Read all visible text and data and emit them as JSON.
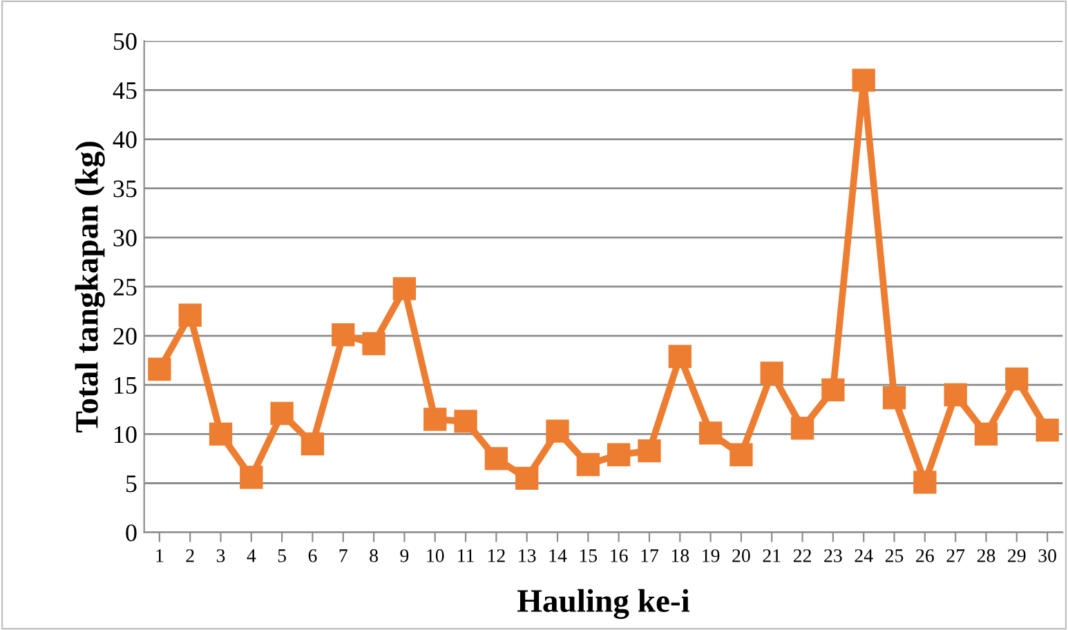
{
  "chart_data": {
    "type": "line",
    "xlabel": "Hauling ke-i",
    "ylabel": "Total tangkapan (kg)",
    "categories": [
      "1",
      "2",
      "3",
      "4",
      "5",
      "6",
      "7",
      "8",
      "9",
      "10",
      "11",
      "12",
      "13",
      "14",
      "15",
      "16",
      "17",
      "18",
      "19",
      "20",
      "21",
      "22",
      "23",
      "24",
      "25",
      "26",
      "27",
      "28",
      "29",
      "30"
    ],
    "series": [
      {
        "color": "#ed7d31",
        "values": [
          16.6,
          22.1,
          10.0,
          5.6,
          12.1,
          9.0,
          20.1,
          19.2,
          24.8,
          11.5,
          11.3,
          7.5,
          5.5,
          10.3,
          6.9,
          7.9,
          8.3,
          17.9,
          10.1,
          7.9,
          16.2,
          10.6,
          14.5,
          46.0,
          13.7,
          5.1,
          14.0,
          10.0,
          15.6,
          10.4
        ]
      }
    ],
    "ylim": [
      0,
      50
    ],
    "yticks": [
      0,
      5,
      10,
      15,
      20,
      25,
      30,
      35,
      40,
      45,
      50
    ],
    "grid": "y",
    "marker": "square",
    "line_style": "solid"
  }
}
